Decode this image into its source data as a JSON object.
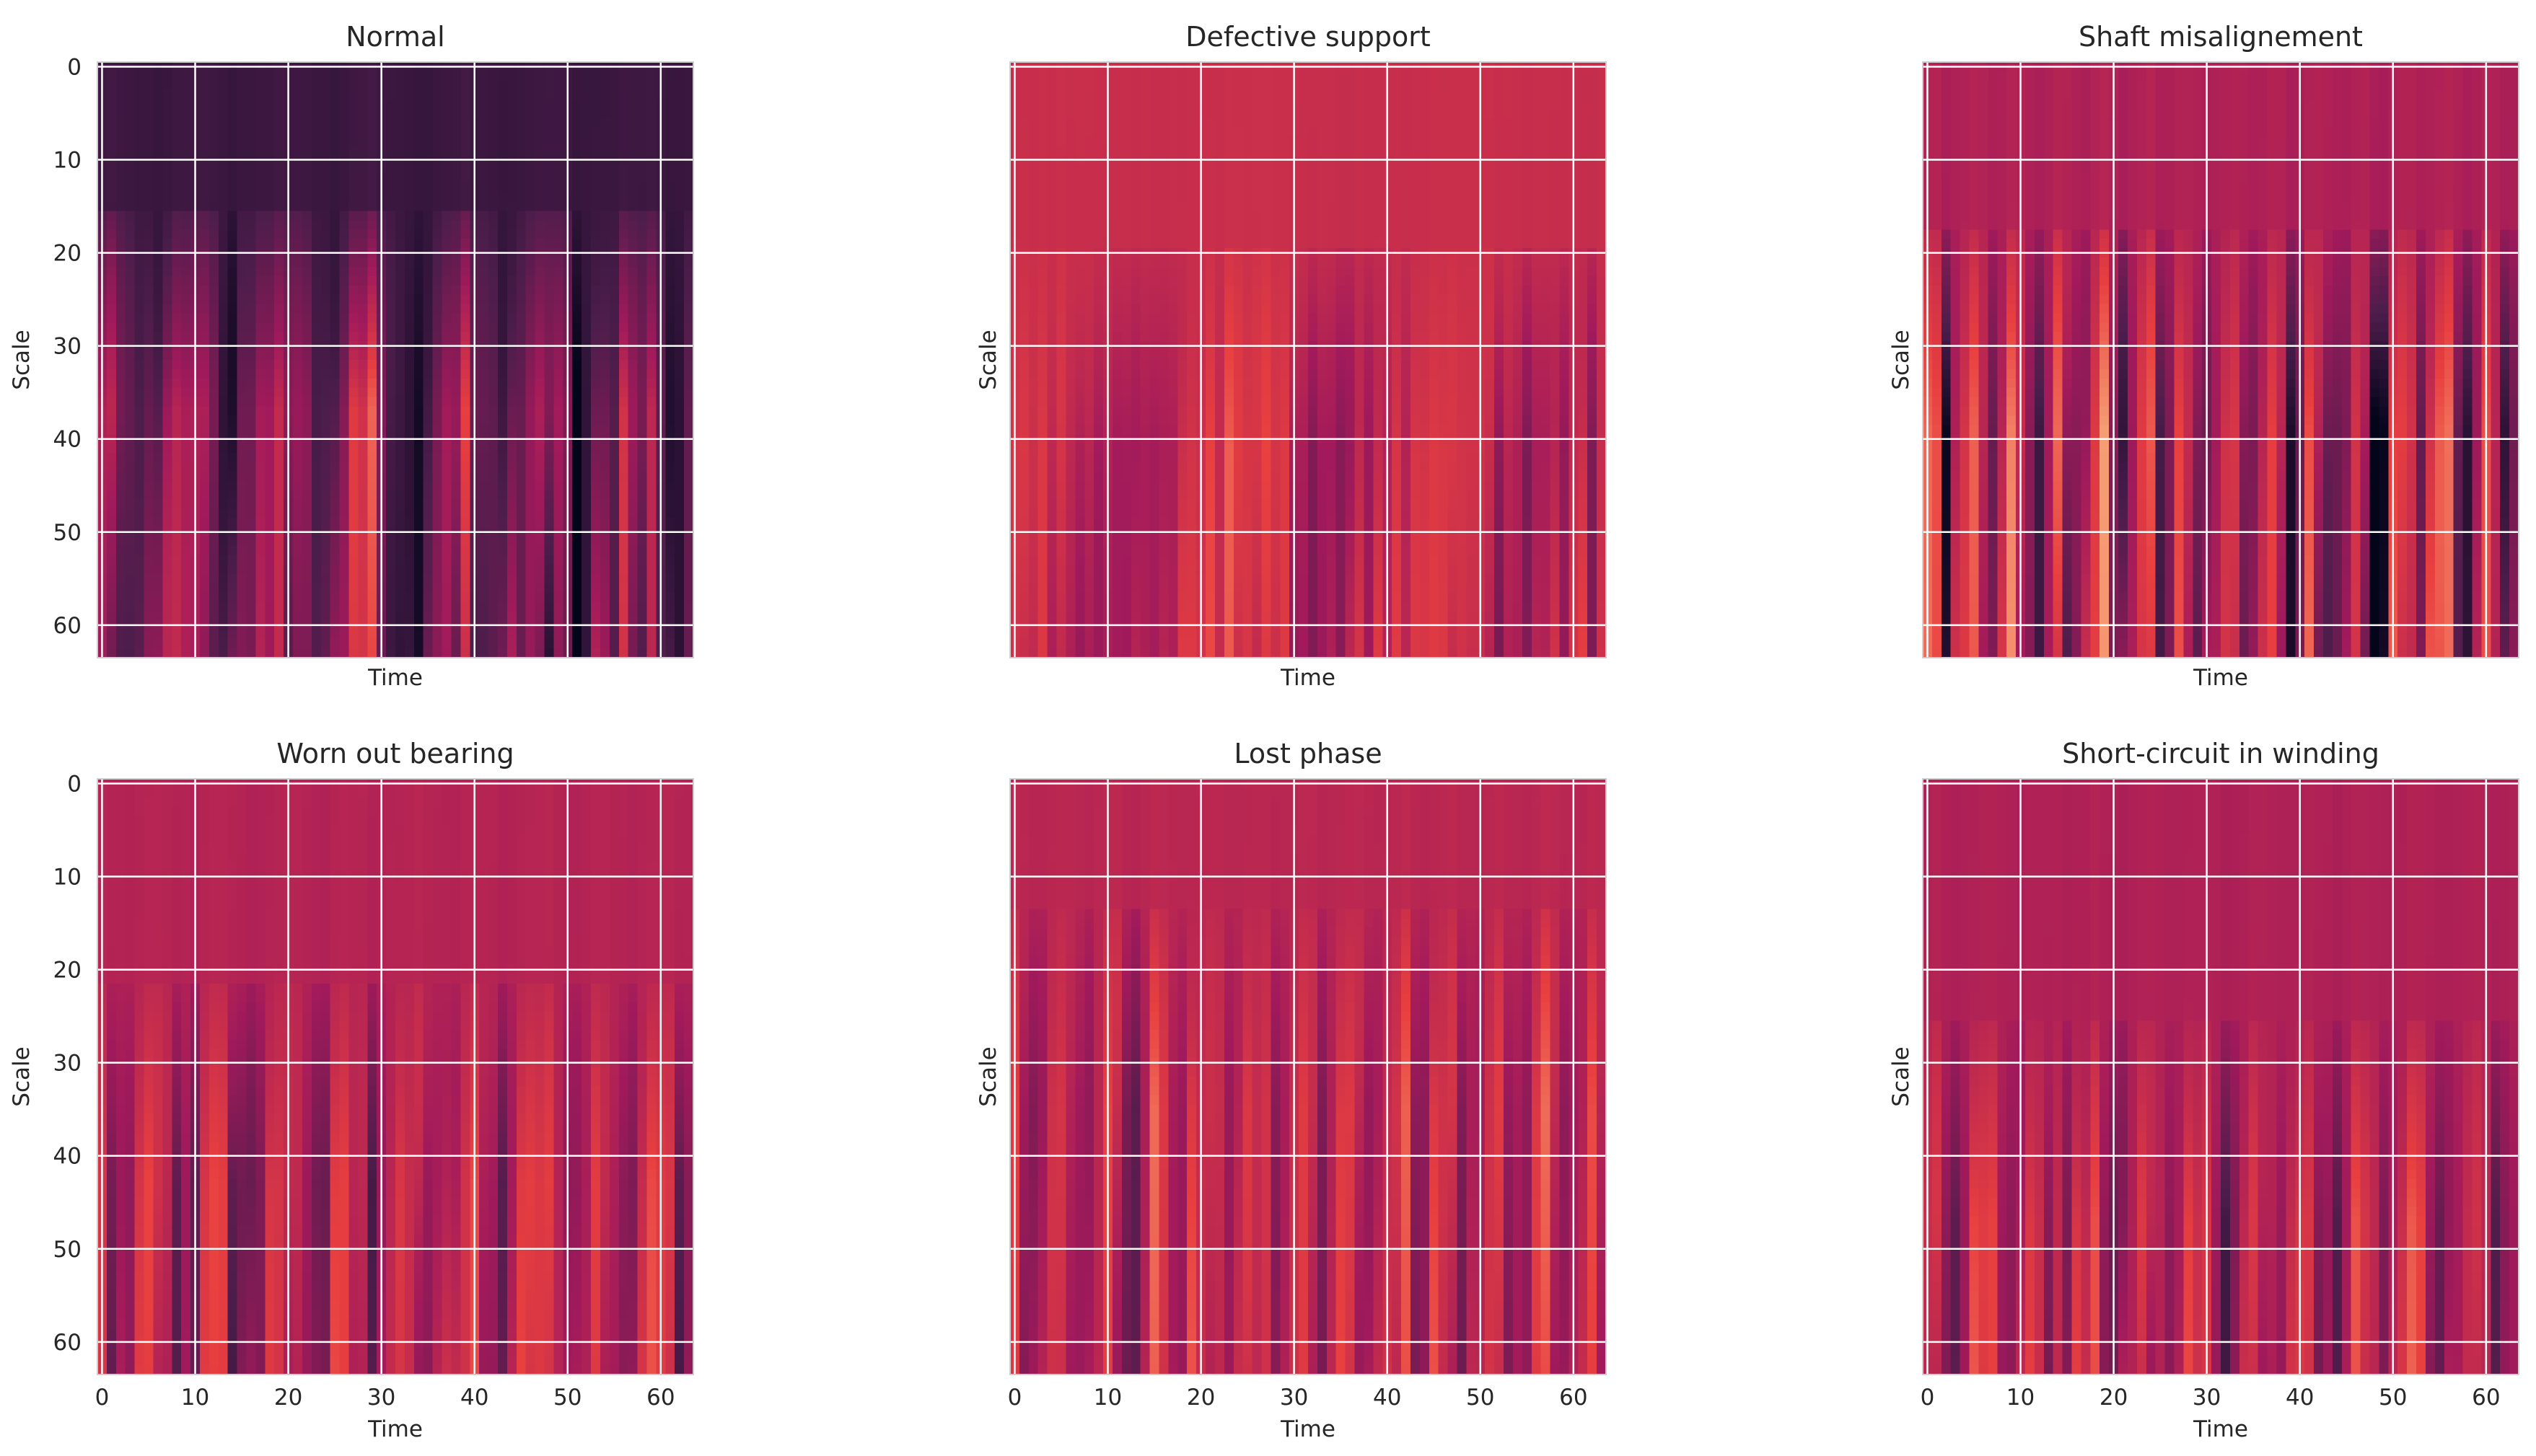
{
  "chart_data": [
    {
      "type": "heatmap",
      "title": "Normal",
      "xlabel": "Time",
      "ylabel": "Scale",
      "show_xticks": false,
      "show_yticks": true,
      "seed": 3,
      "bias": -1.05,
      "period": 9.5,
      "phase": 1.2,
      "depth": 1.0,
      "onset": 16,
      "contrast": 1.2
    },
    {
      "type": "heatmap",
      "title": "Defective support",
      "xlabel": "Time",
      "ylabel": "Scale",
      "show_xticks": false,
      "show_yticks": false,
      "seed": 7,
      "bias": 0.25,
      "period": 22,
      "phase": 0.3,
      "depth": 0.65,
      "onset": 20,
      "contrast": 1.0
    },
    {
      "type": "heatmap",
      "title": "Shaft misalignement",
      "xlabel": "Time",
      "ylabel": "Scale",
      "show_xticks": false,
      "show_yticks": false,
      "seed": 11,
      "bias": 0.0,
      "period": 4.6,
      "phase": 0.8,
      "depth": 1.0,
      "onset": 18,
      "contrast": 1.5
    },
    {
      "type": "heatmap",
      "title": "Worn out bearing",
      "xlabel": "Time",
      "ylabel": "Scale",
      "show_xticks": true,
      "show_yticks": true,
      "seed": 19,
      "bias": 0.05,
      "period": 6.8,
      "phase": 2.1,
      "depth": 0.85,
      "onset": 22,
      "contrast": 1.1
    },
    {
      "type": "heatmap",
      "title": "Lost phase",
      "xlabel": "Time",
      "ylabel": "Scale",
      "show_xticks": true,
      "show_yticks": false,
      "seed": 23,
      "bias": 0.1,
      "period": 5.2,
      "phase": 1.5,
      "depth": 0.8,
      "onset": 14,
      "contrast": 1.0
    },
    {
      "type": "heatmap",
      "title": "Short-circuit in winding",
      "xlabel": "Time",
      "ylabel": "Scale",
      "show_xticks": true,
      "show_yticks": false,
      "seed": 29,
      "bias": 0.0,
      "period": 5.8,
      "phase": 0.6,
      "depth": 0.85,
      "onset": 26,
      "contrast": 1.05
    }
  ],
  "x_ticks": [
    0,
    10,
    20,
    30,
    40,
    50,
    60
  ],
  "y_ticks": [
    0,
    10,
    20,
    30,
    40,
    50,
    60
  ],
  "xlim": [
    0,
    63
  ],
  "ylim": [
    63,
    0
  ],
  "colormap": [
    "#03051a",
    "#4c1d4b",
    "#a11a5b",
    "#e83f3f",
    "#f69c73",
    "#faebdd"
  ],
  "grid_color": "#ffffff",
  "axes_edge_color": "#cfcfcf"
}
